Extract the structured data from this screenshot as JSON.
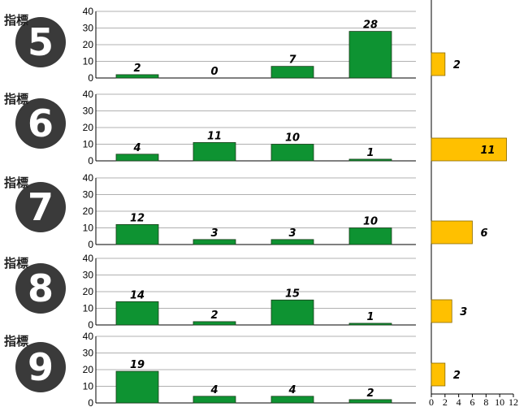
{
  "colors": {
    "bar_green": "#0e9332",
    "bar_orange": "#ffc000",
    "badge": "#3a3a3a",
    "gridline": "#b0b0b0"
  },
  "chart_data": [
    {
      "type": "bar",
      "badge_label": "指標",
      "badge_number": "5",
      "categories": [
        "",
        "",
        "",
        ""
      ],
      "values": [
        2,
        0,
        7,
        28
      ],
      "ylim": [
        0,
        40
      ],
      "yticks": [
        "0",
        "10",
        "20",
        "30",
        "40"
      ],
      "grid": true
    },
    {
      "type": "bar",
      "badge_label": "指標",
      "badge_number": "6",
      "categories": [
        "",
        "",
        "",
        ""
      ],
      "values": [
        4,
        11,
        10,
        1
      ],
      "ylim": [
        0,
        40
      ],
      "yticks": [
        "0",
        "10",
        "20",
        "30",
        "40"
      ],
      "grid": true
    },
    {
      "type": "bar",
      "badge_label": "指標",
      "badge_number": "7",
      "categories": [
        "",
        "",
        "",
        ""
      ],
      "values": [
        12,
        3,
        3,
        10
      ],
      "ylim": [
        0,
        40
      ],
      "yticks": [
        "0",
        "10",
        "20",
        "30",
        "40"
      ],
      "grid": true
    },
    {
      "type": "bar",
      "badge_label": "指標",
      "badge_number": "8",
      "categories": [
        "",
        "",
        "",
        ""
      ],
      "values": [
        14,
        2,
        15,
        1
      ],
      "ylim": [
        0,
        40
      ],
      "yticks": [
        "0",
        "10",
        "20",
        "30",
        "40"
      ],
      "grid": true
    },
    {
      "type": "bar",
      "badge_label": "指標",
      "badge_number": "9",
      "categories": [
        "",
        "",
        "",
        ""
      ],
      "values": [
        19,
        4,
        4,
        2
      ],
      "ylim": [
        0,
        40
      ],
      "yticks": [
        "0",
        "10",
        "20",
        "30",
        "40"
      ],
      "grid": true
    },
    {
      "type": "bar",
      "orientation": "horizontal",
      "categories": [
        "",
        "",
        "",
        "",
        ""
      ],
      "values": [
        2,
        11,
        6,
        3,
        2
      ],
      "xlim": [
        0,
        12
      ],
      "xticks": [
        "0",
        "2",
        "4",
        "6",
        "8",
        "10",
        "12"
      ],
      "grid": false
    }
  ]
}
